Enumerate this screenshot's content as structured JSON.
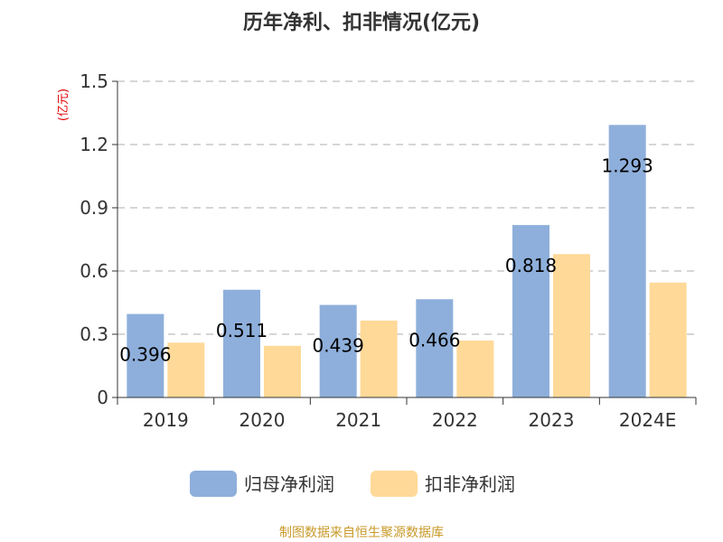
{
  "chart_data": {
    "type": "bar",
    "title": "历年净利、扣非情况(亿元)",
    "ylabel": "(亿元)",
    "xlabel": "",
    "ylim": [
      0,
      1.5
    ],
    "yticks": [
      "0",
      "0.3",
      "0.6",
      "0.9",
      "1.2",
      "1.5"
    ],
    "ytick_values": [
      0,
      0.3,
      0.6,
      0.9,
      1.2,
      1.5
    ],
    "grid": true,
    "categories": [
      "2019",
      "2020",
      "2021",
      "2022",
      "2023",
      "2024E"
    ],
    "series": [
      {
        "name": "归母净利润",
        "color": "#8eafdb",
        "values": [
          0.396,
          0.511,
          0.439,
          0.466,
          0.818,
          1.293
        ],
        "labels": [
          "0.396",
          "0.511",
          "0.439",
          "0.466",
          "0.818",
          "1.293"
        ]
      },
      {
        "name": "扣非净利润",
        "color": "#ffd998",
        "values": [
          0.26,
          0.245,
          0.365,
          0.27,
          0.68,
          0.545
        ]
      }
    ],
    "legend_position": "bottom"
  },
  "footer": {
    "source": "制图数据来自恒生聚源数据库"
  }
}
